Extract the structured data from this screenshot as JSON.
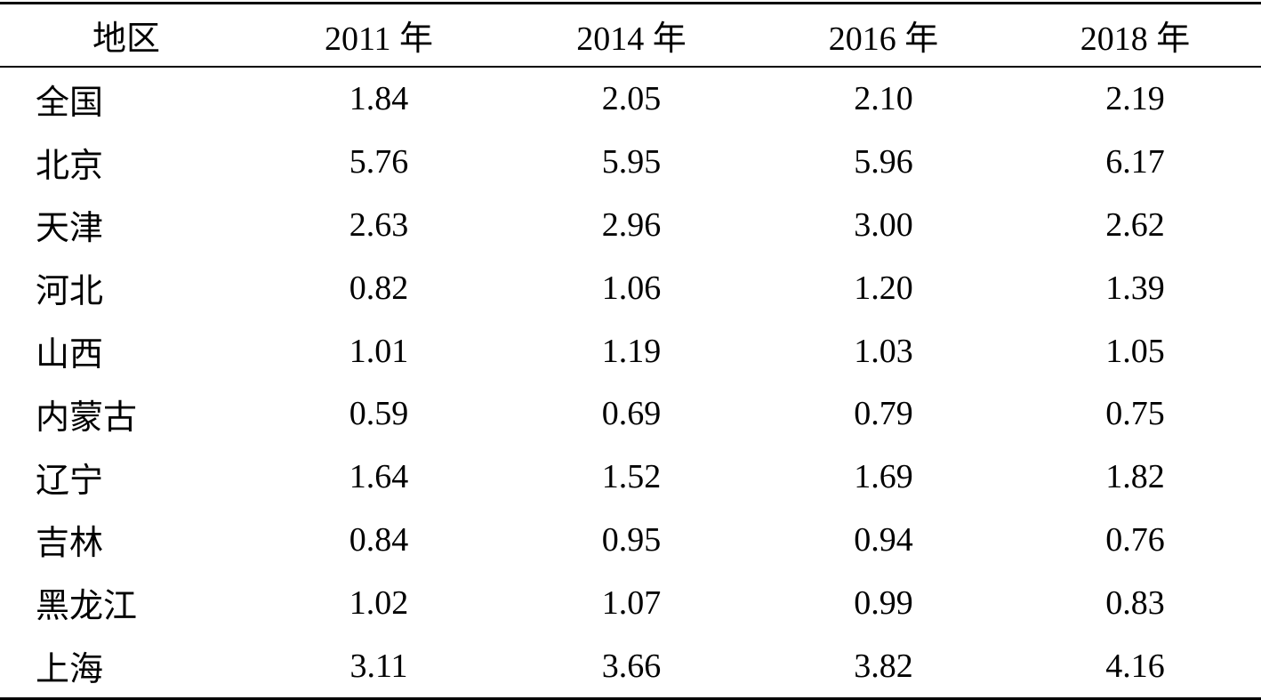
{
  "table": {
    "headers": [
      "地区",
      "2011 年",
      "2014 年",
      "2016 年",
      "2018 年"
    ],
    "rows": [
      {
        "region": "全国",
        "values": [
          "1.84",
          "2.05",
          "2.10",
          "2.19"
        ]
      },
      {
        "region": "北京",
        "values": [
          "5.76",
          "5.95",
          "5.96",
          "6.17"
        ]
      },
      {
        "region": "天津",
        "values": [
          "2.63",
          "2.96",
          "3.00",
          "2.62"
        ]
      },
      {
        "region": "河北",
        "values": [
          "0.82",
          "1.06",
          "1.20",
          "1.39"
        ]
      },
      {
        "region": "山西",
        "values": [
          "1.01",
          "1.19",
          "1.03",
          "1.05"
        ]
      },
      {
        "region": "内蒙古",
        "values": [
          "0.59",
          "0.69",
          "0.79",
          "0.75"
        ]
      },
      {
        "region": "辽宁",
        "values": [
          "1.64",
          "1.52",
          "1.69",
          "1.82"
        ]
      },
      {
        "region": "吉林",
        "values": [
          "0.84",
          "0.95",
          "0.94",
          "0.76"
        ]
      },
      {
        "region": "黑龙江",
        "values": [
          "1.02",
          "1.07",
          "0.99",
          "0.83"
        ]
      },
      {
        "region": "上海",
        "values": [
          "3.11",
          "3.66",
          "3.82",
          "4.16"
        ]
      }
    ]
  }
}
